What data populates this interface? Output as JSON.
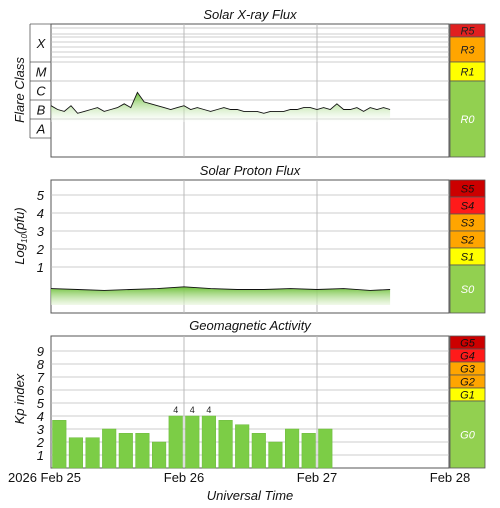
{
  "chart_data": [
    {
      "type": "area",
      "title": "Solar X-ray Flux",
      "ylabel": "Flare Class",
      "class_labels": [
        "X",
        "M",
        "C",
        "B",
        "A"
      ],
      "scale_labels": [
        "R5",
        "R3",
        "R1",
        "R0"
      ],
      "x_range_days": [
        0,
        3
      ],
      "series": [
        {
          "name": "",
          "x": [
            0.0,
            0.05,
            0.1,
            0.15,
            0.2,
            0.25,
            0.3,
            0.35,
            0.4,
            0.45,
            0.5,
            0.55,
            0.6,
            0.65,
            0.7,
            0.75,
            0.8,
            0.85,
            0.9,
            0.95,
            1.0,
            1.05,
            1.1,
            1.15,
            1.2,
            1.25,
            1.3,
            1.35,
            1.4,
            1.45,
            1.5,
            1.55,
            1.6,
            1.65,
            1.7,
            1.75,
            1.8,
            1.85,
            1.9,
            1.95,
            2.0,
            2.05,
            2.1,
            2.15,
            2.2,
            2.25,
            2.3,
            2.35,
            2.4,
            2.45,
            2.5,
            2.55
          ],
          "level": [
            2.7,
            2.5,
            2.4,
            2.7,
            2.3,
            2.4,
            2.5,
            2.6,
            2.4,
            2.5,
            2.6,
            2.8,
            2.6,
            3.4,
            2.9,
            2.8,
            2.7,
            2.6,
            2.5,
            2.6,
            2.7,
            2.5,
            2.6,
            2.5,
            2.4,
            2.5,
            2.6,
            2.5,
            2.5,
            2.4,
            2.4,
            2.4,
            2.3,
            2.4,
            2.4,
            2.4,
            2.5,
            2.5,
            2.6,
            2.6,
            2.5,
            2.6,
            2.5,
            2.8,
            2.5,
            2.5,
            2.6,
            2.4,
            2.6,
            2.5,
            2.6,
            2.5
          ]
        }
      ]
    },
    {
      "type": "area",
      "title": "Solar Proton Flux",
      "ylabel": "Log10(pfu)",
      "yticks": [
        "5",
        "4",
        "3",
        "2",
        "1"
      ],
      "scale_labels": [
        "S5",
        "S4",
        "S3",
        "S2",
        "S1",
        "S0"
      ],
      "series": [
        {
          "name": "",
          "x": [
            0.0,
            0.2,
            0.4,
            0.6,
            0.8,
            1.0,
            1.2,
            1.4,
            1.6,
            1.8,
            2.0,
            2.2,
            2.4,
            2.55
          ],
          "values": [
            -0.2,
            -0.25,
            -0.3,
            -0.25,
            -0.2,
            -0.1,
            -0.2,
            -0.25,
            -0.25,
            -0.2,
            -0.25,
            -0.2,
            -0.3,
            -0.25
          ]
        }
      ]
    },
    {
      "type": "bar",
      "title": "Geomagnetic Activity",
      "ylabel": "Kp index",
      "xlabel": "Universal Time",
      "yticks": [
        "9",
        "8",
        "7",
        "6",
        "5",
        "4",
        "3",
        "2",
        "1"
      ],
      "ylim": [
        0,
        10
      ],
      "scale_labels": [
        "G5",
        "G4",
        "G3",
        "G2",
        "G1",
        "G0"
      ],
      "x_tick_labels": [
        "2026 Feb 25",
        "Feb 26",
        "Feb 27",
        "Feb 28"
      ],
      "values": [
        3.67,
        2.33,
        2.33,
        3.0,
        2.67,
        2.67,
        2.0,
        4.0,
        4.0,
        4.0,
        3.67,
        3.33,
        2.67,
        2.0,
        3.0,
        2.67,
        3.0
      ],
      "data_labels": [
        null,
        null,
        null,
        null,
        null,
        null,
        null,
        "4",
        "4",
        "4",
        null,
        null,
        null,
        null,
        null,
        null,
        null
      ]
    }
  ],
  "colors": {
    "grid": "#bbbbbb",
    "fill_green": "#7ccd46",
    "line": "#111111",
    "r0": "#92d050",
    "r1": "#ffff00",
    "r3": "#ffa500",
    "r5": "#e02020",
    "s4": "#ff1a1a",
    "s5": "#cc0000"
  }
}
